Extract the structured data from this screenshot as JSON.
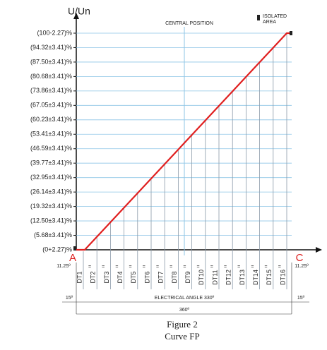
{
  "axis_label": "U/Un",
  "central_position": "CENTRAL POSITION",
  "isolated_area": [
    "ISOLATED",
    "AREA"
  ],
  "y_labels": [
    "(100-2.27)%",
    "(94.32±3.41)%",
    "(87.50±3.41)%",
    "(80.68±3.41)%",
    "(73.86±3.41)%",
    "(67.05±3.41)%",
    "(60.23±3.41)%",
    "(53.41±3.41)%",
    "(46.59±3.41)%",
    "(39.77±3.41)%",
    "(32.95±3.41)%",
    "(26.14±3.41)%",
    "(19.32±3.41)%",
    "(12.50±3.41)%",
    "(5.68±3.41)%",
    "(0+2.27)%"
  ],
  "point_a": "A",
  "point_c": "C",
  "angle_left": "11.25º",
  "angle_right": "11.25º",
  "dt_labels": [
    "DT1",
    "DT2",
    "DT3",
    "DT4",
    "DT5",
    "DT6",
    "DT7",
    "DT8",
    "DT9",
    "DT10",
    "DT11",
    "DT12",
    "DT13",
    "DT14",
    "DT15",
    "DT16"
  ],
  "left_margin": "15º",
  "electrical_angle": "ELECTRICAL ANGLE 330º",
  "right_margin": "15º",
  "total_angle": "360º",
  "caption": {
    "figure": "Figure 2",
    "title": "Curve FP"
  }
}
